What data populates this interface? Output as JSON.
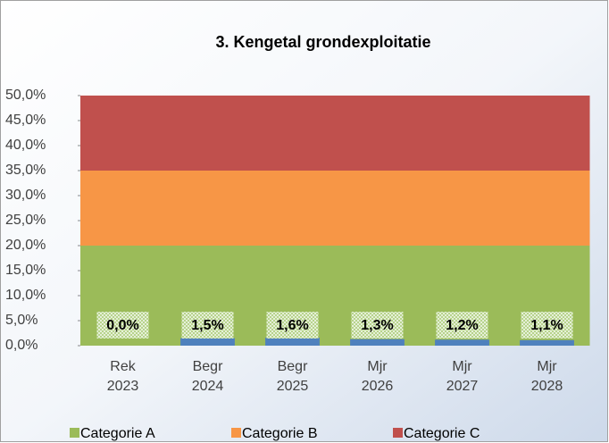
{
  "chart_data": {
    "type": "bar",
    "title": "3. Kengetal grondexploitatie",
    "categories": [
      [
        "Rek",
        "2023"
      ],
      [
        "Begr",
        "2024"
      ],
      [
        "Begr",
        "2025"
      ],
      [
        "Mjr",
        "2026"
      ],
      [
        "Mjr",
        "2027"
      ],
      [
        "Mjr",
        "2028"
      ]
    ],
    "series": [
      {
        "name": "Categorie A",
        "color": "#9bbb59",
        "values": [
          20,
          20,
          20,
          20,
          20,
          20
        ]
      },
      {
        "name": "Categorie B",
        "color": "#f79646",
        "values": [
          15,
          15,
          15,
          15,
          15,
          15
        ]
      },
      {
        "name": "Categorie C",
        "color": "#c0504d",
        "values": [
          15,
          15,
          15,
          15,
          15,
          15
        ]
      },
      {
        "color": "#4f81bd",
        "values": [
          0.0,
          1.5,
          1.6,
          1.3,
          1.2,
          1.1
        ],
        "value_labels": [
          "0,0%",
          "1,5%",
          "1,6%",
          "1,3%",
          "1,2%",
          "1,1%"
        ]
      }
    ],
    "ylim": [
      0,
      50
    ],
    "yticks": [
      {
        "value": 0,
        "label": "0,0%"
      },
      {
        "value": 5,
        "label": "5,0%"
      },
      {
        "value": 10,
        "label": "10,0%"
      },
      {
        "value": 15,
        "label": "15,0%"
      },
      {
        "value": 20,
        "label": "20,0%"
      },
      {
        "value": 25,
        "label": "25,0%"
      },
      {
        "value": 30,
        "label": "30,0%"
      },
      {
        "value": 35,
        "label": "35,0%"
      },
      {
        "value": 40,
        "label": "40,0%"
      },
      {
        "value": 45,
        "label": "45,0%"
      },
      {
        "value": 50,
        "label": "50,0%"
      }
    ]
  }
}
